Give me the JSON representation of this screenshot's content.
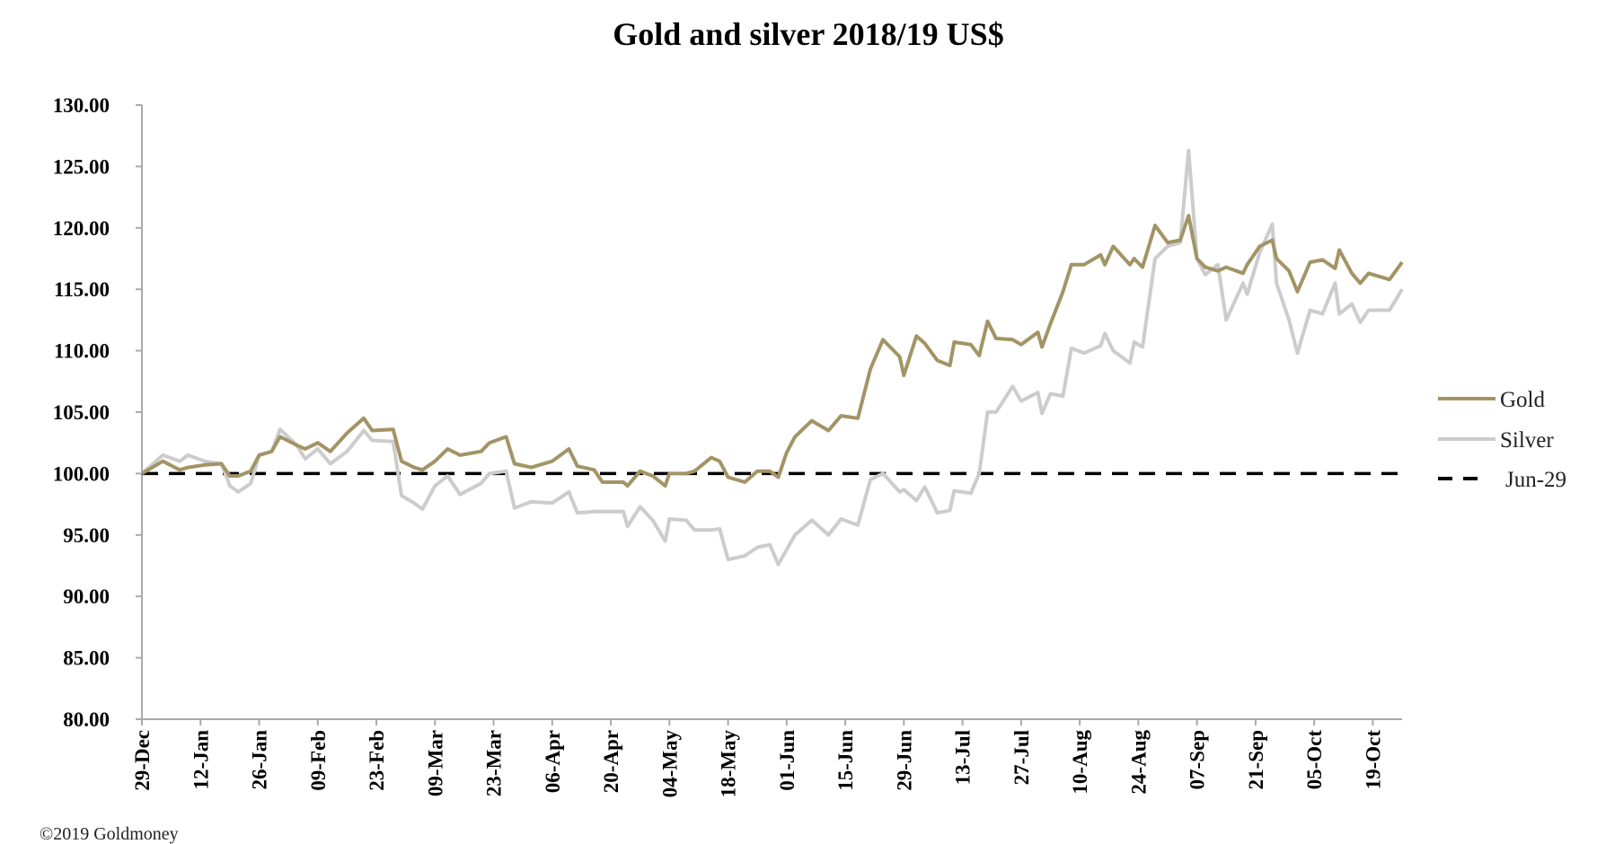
{
  "chart_data": {
    "type": "line",
    "title": "Gold and silver 2018/19  US$",
    "xlabel": "",
    "ylabel": "",
    "x_unit": "days since 29-Dec",
    "xlim": [
      0,
      301
    ],
    "ylim": [
      80,
      130
    ],
    "yticks": [
      "80.00",
      "85.00",
      "90.00",
      "95.00",
      "100.00",
      "105.00",
      "110.00",
      "115.00",
      "120.00",
      "125.00",
      "130.00"
    ],
    "ytick_values": [
      80,
      85,
      90,
      95,
      100,
      105,
      110,
      115,
      120,
      125,
      130
    ],
    "xticks": [
      "29-Dec",
      "12-Jan",
      "26-Jan",
      "09-Feb",
      "23-Feb",
      "09-Mar",
      "23-Mar",
      "06-Apr",
      "20-Apr",
      "04-May",
      "18-May",
      "01-Jun",
      "15-Jun",
      "29-Jun",
      "13-Jul",
      "27-Jul",
      "10-Aug",
      "24-Aug",
      "07-Sep",
      "21-Sep",
      "05-Oct",
      "19-Oct"
    ],
    "xtick_values": [
      0,
      14,
      28,
      42,
      56,
      70,
      84,
      98,
      112,
      126,
      140,
      154,
      168,
      182,
      196,
      210,
      224,
      238,
      252,
      266,
      280,
      294
    ],
    "grid": false,
    "legend_position": "right",
    "x": [
      0,
      5,
      9,
      11,
      15,
      19,
      21,
      23,
      26,
      28,
      31,
      33,
      37,
      39,
      42,
      45,
      49,
      53,
      55,
      60,
      62,
      65,
      67,
      70,
      73,
      76,
      81,
      83,
      87,
      89,
      93,
      98,
      102,
      104,
      108,
      110,
      115,
      116,
      119,
      122,
      125,
      126,
      130,
      132,
      136,
      138,
      140,
      144,
      147,
      150,
      152,
      154,
      156,
      160,
      164,
      167,
      171,
      174,
      177,
      181,
      182,
      185,
      187,
      190,
      193,
      194,
      198,
      200,
      202,
      204,
      208,
      210,
      214,
      215,
      217,
      220,
      222,
      225,
      229,
      230,
      232,
      236,
      237,
      239,
      242,
      245,
      248,
      250,
      252,
      254,
      257,
      259,
      263,
      264,
      267,
      270,
      271,
      274,
      276,
      279,
      282,
      285,
      286,
      289,
      291,
      293,
      298,
      301
    ],
    "series": [
      {
        "name": "Gold",
        "color": "#A39466",
        "values": [
          100,
          101,
          100.3,
          100.5,
          100.7,
          100.8,
          99.8,
          99.8,
          100.2,
          101.5,
          101.8,
          103,
          102.3,
          102,
          102.5,
          101.8,
          103.3,
          104.5,
          103.5,
          103.6,
          101,
          100.5,
          100.3,
          101,
          102,
          101.5,
          101.8,
          102.5,
          103,
          100.8,
          100.5,
          101,
          102,
          100.6,
          100.3,
          99.3,
          99.3,
          99,
          100.2,
          99.8,
          99,
          100,
          100,
          100.2,
          101.3,
          101,
          99.7,
          99.3,
          100.2,
          100.2,
          99.7,
          101.7,
          103,
          104.3,
          103.5,
          104.7,
          104.5,
          108.5,
          110.9,
          109.5,
          108,
          111.2,
          110.6,
          109.2,
          108.8,
          110.7,
          110.5,
          109.6,
          112.4,
          111,
          110.9,
          110.5,
          111.5,
          110.3,
          112.2,
          114.8,
          117,
          117,
          117.8,
          117,
          118.5,
          117,
          117.5,
          116.8,
          120.2,
          118.8,
          119,
          121,
          117.5,
          116.8,
          116.5,
          116.8,
          116.3,
          117,
          118.5,
          119,
          117.5,
          116.5,
          114.8,
          117.2,
          117.4,
          116.7,
          118.2,
          116.3,
          115.5,
          116.3,
          115.8,
          117.2
        ]
      },
      {
        "name": "Silver",
        "color": "#CCCCCC",
        "values": [
          100,
          101.5,
          101,
          101.5,
          101,
          100.8,
          99,
          98.5,
          99.2,
          101.5,
          101.8,
          103.6,
          102.3,
          101.2,
          102,
          100.8,
          101.8,
          103.5,
          102.7,
          102.6,
          98.2,
          97.6,
          97.1,
          99,
          99.8,
          98.3,
          99.2,
          100,
          100.2,
          97.2,
          97.7,
          97.6,
          98.5,
          96.8,
          96.9,
          96.9,
          96.9,
          95.7,
          97.3,
          96.2,
          94.5,
          96.3,
          96.2,
          95.4,
          95.4,
          95.5,
          93,
          93.3,
          94,
          94.2,
          92.6,
          93.8,
          95,
          96.2,
          95,
          96.3,
          95.8,
          99.5,
          100,
          98.5,
          98.7,
          97.8,
          98.9,
          96.8,
          97,
          98.6,
          98.4,
          100,
          105,
          105,
          107.1,
          105.9,
          106.6,
          104.9,
          106.5,
          106.3,
          110.2,
          109.8,
          110.4,
          111.4,
          110,
          109,
          110.7,
          110.3,
          117.5,
          118.5,
          118.8,
          126.3,
          117.5,
          116.2,
          117,
          112.5,
          115.5,
          114.6,
          118,
          120.3,
          115.5,
          112.5,
          109.8,
          113.3,
          113,
          115.5,
          113,
          113.8,
          112.3,
          113.3,
          113.3,
          115
        ]
      },
      {
        "name": "Jun-29",
        "color": "#000000",
        "dashed": true,
        "values_constant": 100
      }
    ]
  },
  "credit": "©2019 Goldmoney"
}
